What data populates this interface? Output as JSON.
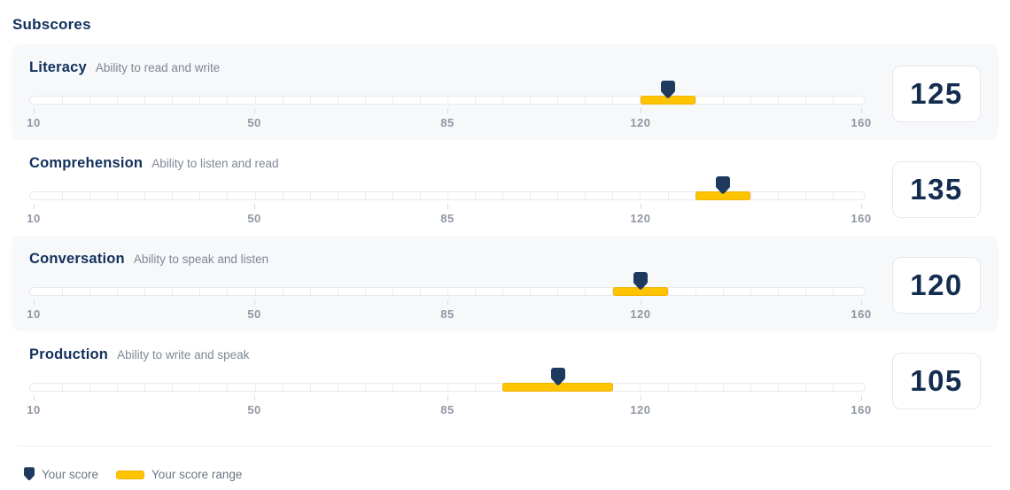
{
  "page_title": "Subscores",
  "scale": {
    "min": 10,
    "max": 160,
    "minor_step": 5,
    "tick_labels": [
      10,
      50,
      85,
      120,
      160
    ]
  },
  "subscores": [
    {
      "name": "Literacy",
      "description": "Ability to read and write",
      "score": 125,
      "range_low": 120,
      "range_high": 130
    },
    {
      "name": "Comprehension",
      "description": "Ability to listen and read",
      "score": 135,
      "range_low": 130,
      "range_high": 140
    },
    {
      "name": "Conversation",
      "description": "Ability to speak and listen",
      "score": 120,
      "range_low": 115,
      "range_high": 125
    },
    {
      "name": "Production",
      "description": "Ability to write and speak",
      "score": 105,
      "range_low": 95,
      "range_high": 115
    }
  ],
  "legend": {
    "score_label": "Your score",
    "range_label": "Your score range"
  },
  "colors": {
    "navy_text": "#12305a",
    "pin": "#1e3a5f",
    "range_yellow": "#ffc400",
    "alt_row_bg": "#f7f8fa",
    "tick_label": "#8f97a3"
  }
}
